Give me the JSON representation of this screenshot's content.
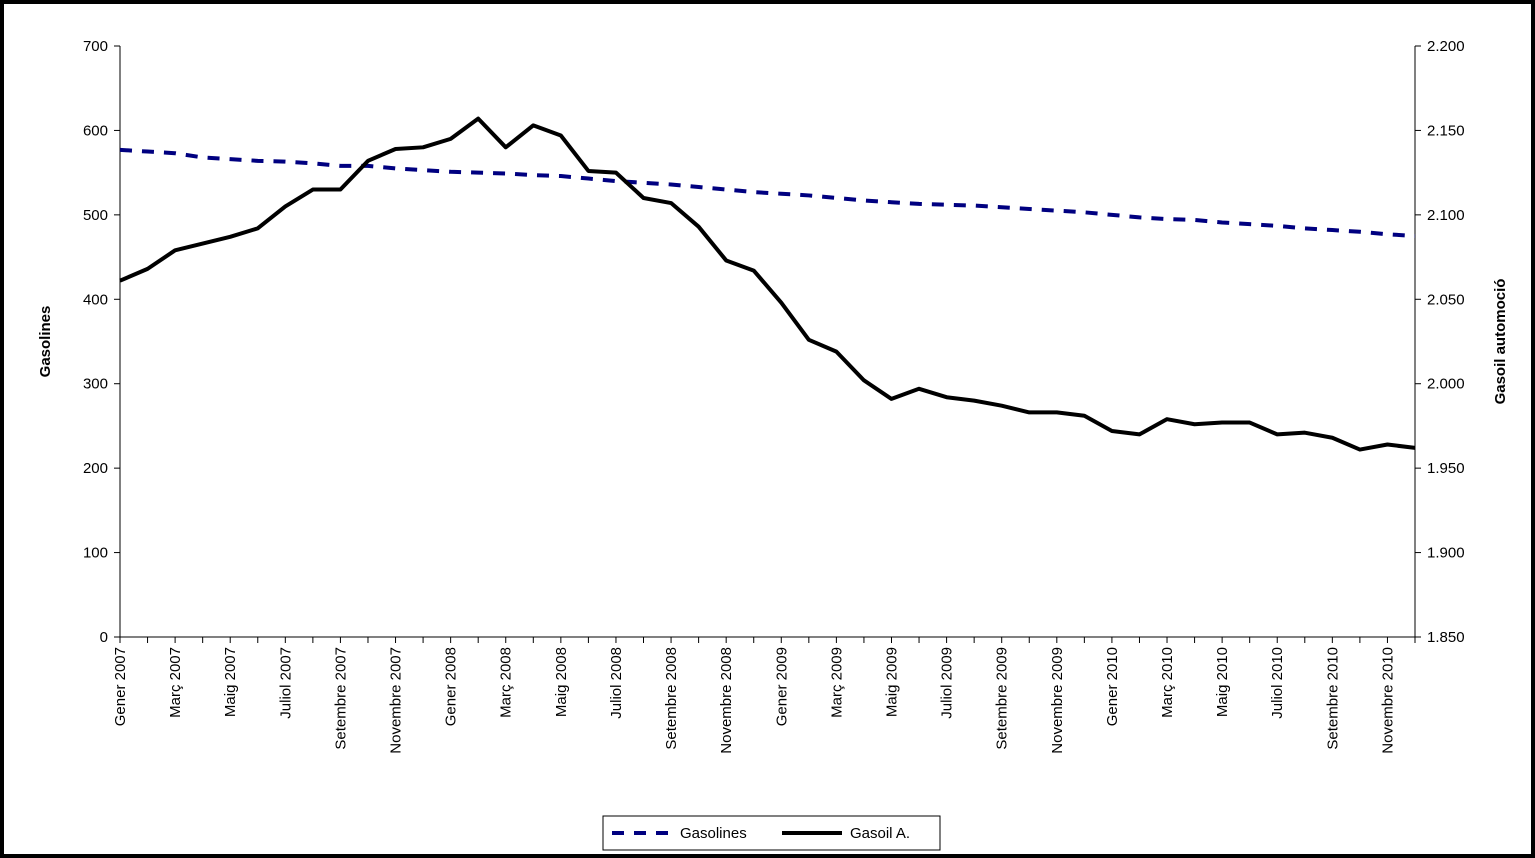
{
  "chart_data": {
    "type": "line",
    "categories": [
      "Gener 2007",
      null,
      "Març 2007",
      null,
      "Maig 2007",
      null,
      "Juliol 2007",
      null,
      "Setembre 2007",
      null,
      "Novembre 2007",
      null,
      "Gener 2008",
      null,
      "Març 2008",
      null,
      "Maig 2008",
      null,
      "Juliol 2008",
      null,
      "Setembre 2008",
      null,
      "Novembre 2008",
      null,
      "Gener 2009",
      null,
      "Març 2009",
      null,
      "Maig 2009",
      null,
      "Juliol 2009",
      null,
      "Setembre 2009",
      null,
      "Novembre 2009",
      null,
      "Gener 2010",
      null,
      "Març 2010",
      null,
      "Maig 2010",
      null,
      "Juliol 2010",
      null,
      "Setembre 2010",
      null,
      "Novembre 2010",
      null
    ],
    "y_label": "Gasolines",
    "y2_label": "Gasoil automoció",
    "ylim": [
      0,
      700
    ],
    "yticks": [
      0,
      100,
      200,
      300,
      400,
      500,
      600,
      700
    ],
    "y2lim": [
      1850,
      2200
    ],
    "y2ticks": [
      {
        "value": 1850,
        "label": "1.850"
      },
      {
        "value": 1900,
        "label": "1.900"
      },
      {
        "value": 1950,
        "label": "1.950"
      },
      {
        "value": 2000,
        "label": "2.000"
      },
      {
        "value": 2050,
        "label": "2.050"
      },
      {
        "value": 2100,
        "label": "2.100"
      },
      {
        "value": 2150,
        "label": "2.150"
      },
      {
        "value": 2200,
        "label": "2.200"
      }
    ],
    "series": [
      {
        "name": "Gasolines",
        "color": "#000080",
        "dashed": true,
        "values": [
          577,
          575,
          573,
          568,
          566,
          564,
          563,
          561,
          558,
          558,
          555,
          553,
          551,
          550,
          549,
          547,
          546,
          543,
          540,
          538,
          536,
          533,
          530,
          527,
          525,
          523,
          520,
          517,
          515,
          513,
          512,
          511,
          509,
          507,
          505,
          503,
          500,
          497,
          495,
          494,
          491,
          489,
          487,
          484,
          482,
          480,
          477,
          475
        ]
      },
      {
        "name": "Gasoil A.",
        "color": "#000000",
        "axis": "y2",
        "values": [
          2061,
          2068,
          2079,
          2083,
          2087,
          2092,
          2105,
          2115,
          2115,
          2132,
          2139,
          2140,
          2145,
          2157,
          2140,
          2153,
          2147,
          2126,
          2125,
          2110,
          2107,
          2093,
          2073,
          2067,
          2048,
          2026,
          2019,
          2002,
          1991,
          1997,
          1992,
          1990,
          1987,
          1983,
          1983,
          1981,
          1972,
          1970,
          1979,
          1976,
          1977,
          1977,
          1970,
          1971,
          1968,
          1961,
          1964,
          1962
        ]
      }
    ]
  }
}
